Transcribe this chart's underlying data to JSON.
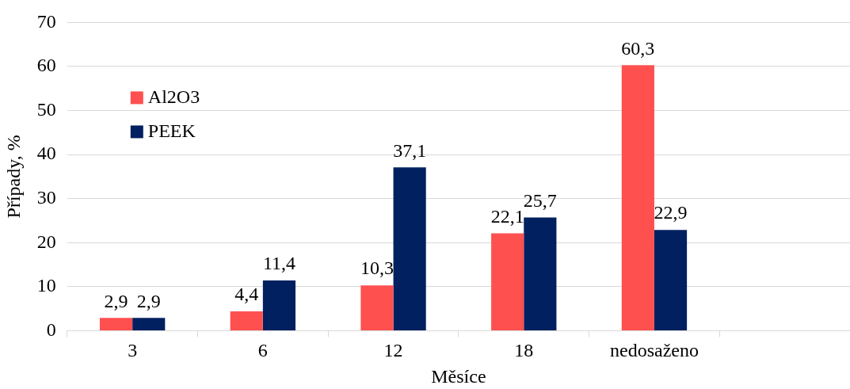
{
  "chart_data": {
    "type": "bar",
    "xlabel": "Měsíce",
    "ylabel": "Případy, %",
    "categories": [
      "3",
      "6",
      "12",
      "18",
      "nedosaženo",
      null
    ],
    "series": [
      {
        "name": "Al2O3",
        "color": "#ff5050",
        "values": [
          2.9,
          4.4,
          10.3,
          22.1,
          60.3,
          null
        ],
        "value_labels": [
          "2,9",
          "4,4",
          "10,3",
          "22,1",
          "60,3",
          null
        ]
      },
      {
        "name": "PEEK",
        "color": "#002060",
        "values": [
          2.9,
          11.4,
          37.1,
          25.7,
          22.9,
          null
        ],
        "value_labels": [
          "2,9",
          "11,4",
          "37,1",
          "25,7",
          "22,9",
          null
        ]
      }
    ],
    "ylim": [
      0,
      70
    ],
    "yticks": [
      0,
      10,
      20,
      30,
      40,
      50,
      60,
      70
    ],
    "grid": "y",
    "legend": "top left"
  }
}
